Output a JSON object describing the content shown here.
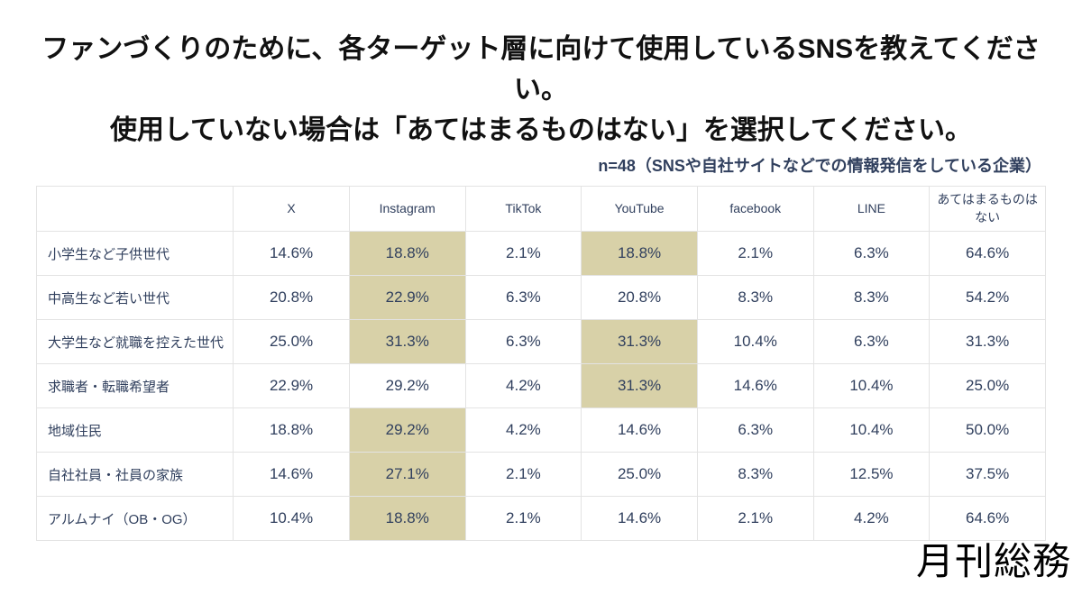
{
  "title": {
    "line1": "ファンづくりのために、各ターゲット層に向けて使用しているSNSを教えてください。",
    "line2": "使用していない場合は「あてはまるものはない」を選択してください。"
  },
  "subtitle": "n=48（SNSや自社サイトなどでの情報発信をしている企業）",
  "logo": "月刊総務",
  "colors": {
    "title_text": "#111111",
    "table_text": "#31405e",
    "highlight": "#d8d1a8",
    "border": "#e3e3e3",
    "background": "#ffffff"
  },
  "chart_data": {
    "type": "table",
    "title": "ファンづくりのために、各ターゲット層に向けて使用しているSNSを教えてください。使用していない場合は「あてはまるものはない」を選択してください。",
    "sample_note": "n=48（SNSや自社サイトなどでの情報発信をしている企業）",
    "unit": "%",
    "columns": [
      "X",
      "Instagram",
      "TikTok",
      "YouTube",
      "facebook",
      "LINE",
      "あてはまるものはない"
    ],
    "rows": [
      {
        "label": "小学生など子供世代",
        "values": [
          14.6,
          18.8,
          2.1,
          18.8,
          2.1,
          6.3,
          64.6
        ],
        "highlight_cols": [
          1,
          3
        ]
      },
      {
        "label": "中高生など若い世代",
        "values": [
          20.8,
          22.9,
          6.3,
          20.8,
          8.3,
          8.3,
          54.2
        ],
        "highlight_cols": [
          1
        ]
      },
      {
        "label": "大学生など就職を控えた世代",
        "values": [
          25.0,
          31.3,
          6.3,
          31.3,
          10.4,
          6.3,
          31.3
        ],
        "highlight_cols": [
          1,
          3
        ]
      },
      {
        "label": "求職者・転職希望者",
        "values": [
          22.9,
          29.2,
          4.2,
          31.3,
          14.6,
          10.4,
          25.0
        ],
        "highlight_cols": [
          3
        ]
      },
      {
        "label": "地域住民",
        "values": [
          18.8,
          29.2,
          4.2,
          14.6,
          6.3,
          10.4,
          50.0
        ],
        "highlight_cols": [
          1
        ]
      },
      {
        "label": "自社社員・社員の家族",
        "values": [
          14.6,
          27.1,
          2.1,
          25.0,
          8.3,
          12.5,
          37.5
        ],
        "highlight_cols": [
          1
        ]
      },
      {
        "label": "アルムナイ（OB・OG）",
        "values": [
          10.4,
          18.8,
          2.1,
          14.6,
          2.1,
          4.2,
          64.6
        ],
        "highlight_cols": [
          1
        ]
      }
    ],
    "highlight_meaning": "row maximum among SNS columns",
    "legend": "none",
    "grid": true
  }
}
